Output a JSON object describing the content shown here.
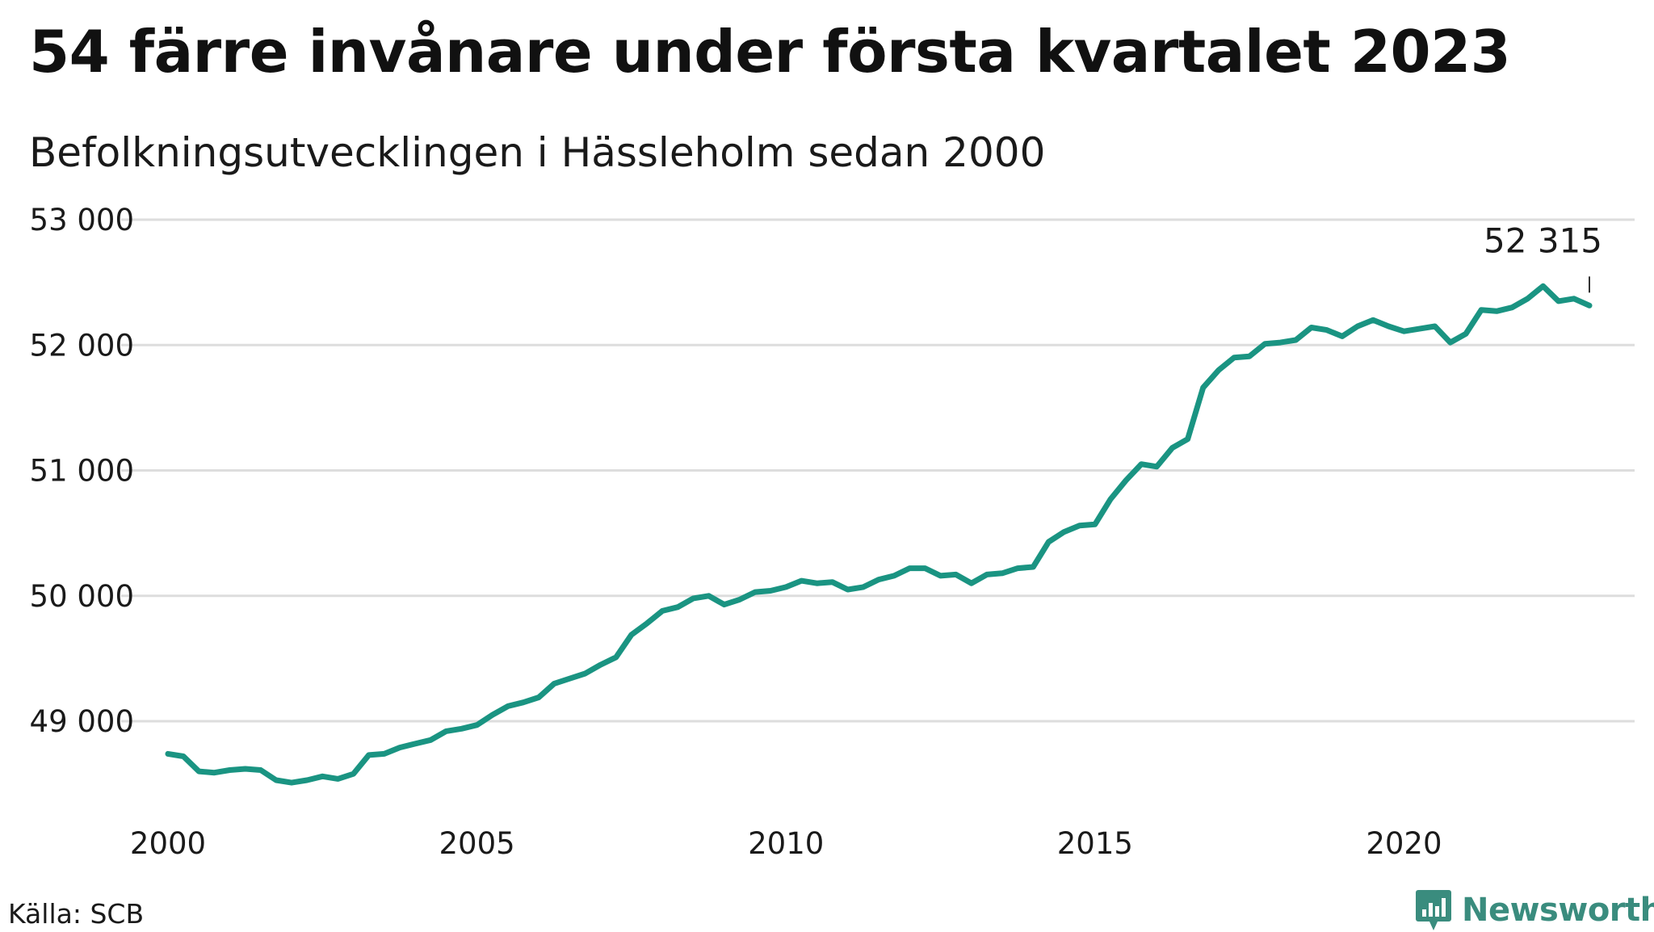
{
  "title": "54 färre invånare under första kvartalet 2023",
  "subtitle": "Befolkningsutvecklingen i Hässleholm sedan 2000",
  "source": "Källa: SCB",
  "brand": {
    "name": "Newsworthy",
    "color": "#3a8c7e",
    "icon": "newsworthy-logo-icon"
  },
  "colors": {
    "line": "#1a9482",
    "grid": "#dddddd",
    "text": "#1a1a1a"
  },
  "chart_data": {
    "type": "line",
    "title": "54 färre invånare under första kvartalet 2023",
    "subtitle": "Befolkningsutvecklingen i Hässleholm sedan 2000",
    "xlabel": "",
    "ylabel": "",
    "xlim": [
      2000,
      2023.25
    ],
    "ylim": [
      48300,
      53000
    ],
    "yticks": [
      49000,
      50000,
      51000,
      52000,
      53000
    ],
    "ytick_labels": [
      "49 000",
      "50 000",
      "51 000",
      "52 000",
      "53 000"
    ],
    "xticks": [
      2000,
      2005,
      2010,
      2015,
      2020
    ],
    "xtick_labels": [
      "2000",
      "2005",
      "2010",
      "2015",
      "2020"
    ],
    "grid": true,
    "legend": "none",
    "end_label": "52 315",
    "series": [
      {
        "x": [
          2000.0,
          2000.25,
          2000.5,
          2000.75,
          2001.0,
          2001.25,
          2001.5,
          2001.75,
          2002.0,
          2002.25,
          2002.5,
          2002.75,
          2003.0,
          2003.25,
          2003.5,
          2003.75,
          2004.0,
          2004.25,
          2004.5,
          2004.75,
          2005.0,
          2005.25,
          2005.5,
          2005.75,
          2006.0,
          2006.25,
          2006.5,
          2006.75,
          2007.0,
          2007.25,
          2007.5,
          2007.75,
          2008.0,
          2008.25,
          2008.5,
          2008.75,
          2009.0,
          2009.25,
          2009.5,
          2009.75,
          2010.0,
          2010.25,
          2010.5,
          2010.75,
          2011.0,
          2011.25,
          2011.5,
          2011.75,
          2012.0,
          2012.25,
          2012.5,
          2012.75,
          2013.0,
          2013.25,
          2013.5,
          2013.75,
          2014.0,
          2014.25,
          2014.5,
          2014.75,
          2015.0,
          2015.25,
          2015.5,
          2015.75,
          2016.0,
          2016.25,
          2016.5,
          2016.75,
          2017.0,
          2017.25,
          2017.5,
          2017.75,
          2018.0,
          2018.25,
          2018.5,
          2018.75,
          2019.0,
          2019.25,
          2019.5,
          2019.75,
          2020.0,
          2020.25,
          2020.5,
          2020.75,
          2021.0,
          2021.25,
          2021.5,
          2021.75,
          2022.0,
          2022.25,
          2022.5,
          2022.75,
          2023.0
        ],
        "y": [
          48740,
          48720,
          48600,
          48590,
          48610,
          48620,
          48610,
          48530,
          48510,
          48530,
          48560,
          48540,
          48580,
          48730,
          48740,
          48790,
          48820,
          48850,
          48920,
          48940,
          48970,
          49050,
          49120,
          49150,
          49190,
          49300,
          49340,
          49380,
          49450,
          49510,
          49690,
          49780,
          49880,
          49910,
          49980,
          50000,
          49930,
          49970,
          50030,
          50040,
          50070,
          50120,
          50100,
          50110,
          50050,
          50070,
          50130,
          50160,
          50220,
          50220,
          50160,
          50170,
          50100,
          50170,
          50180,
          50220,
          50230,
          50430,
          50510,
          50560,
          50570,
          50770,
          50920,
          51050,
          51030,
          51180,
          51250,
          51660,
          51800,
          51900,
          51910,
          52010,
          52020,
          52040,
          52140,
          52120,
          52070,
          52150,
          52200,
          52150,
          52110,
          52130,
          52150,
          52020,
          52090,
          52280,
          52270,
          52300,
          52370,
          52470,
          52350,
          52370,
          52315
        ]
      }
    ]
  }
}
